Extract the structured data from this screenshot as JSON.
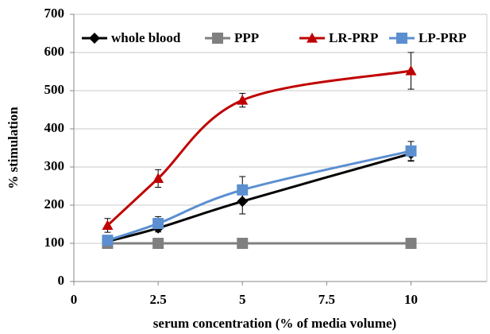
{
  "chart_data": {
    "type": "line",
    "x_label": "serum concentration (% of media volume)",
    "y_label": "% stimulation",
    "x": [
      1,
      2.5,
      5,
      10
    ],
    "series": [
      {
        "name": "whole blood",
        "color": "#000000",
        "marker": "diamond",
        "values": [
          105,
          140,
          210,
          335
        ],
        "errors": [
          5,
          10,
          33,
          20
        ]
      },
      {
        "name": "PPP",
        "color": "#808080",
        "marker": "square",
        "values": [
          100,
          100,
          100,
          100
        ]
      },
      {
        "name": "LR-PRP",
        "color": "#c00000",
        "marker": "triangle",
        "values": [
          147,
          270,
          475,
          552
        ],
        "errors": [
          18,
          23,
          18,
          48
        ]
      },
      {
        "name": "LP-PRP",
        "color": "#5b8fd0",
        "marker": "square",
        "values": [
          108,
          152,
          240,
          342
        ],
        "errors": [
          5,
          18,
          35,
          25
        ]
      }
    ],
    "xlim": [
      0,
      12.25
    ],
    "xticks": [
      0,
      2.5,
      5,
      7.5,
      10
    ],
    "ylim": [
      0,
      700
    ],
    "yticks": [
      0,
      100,
      200,
      300,
      400,
      500,
      600,
      700
    ],
    "grid": true,
    "smooth": true,
    "legend": "top"
  }
}
